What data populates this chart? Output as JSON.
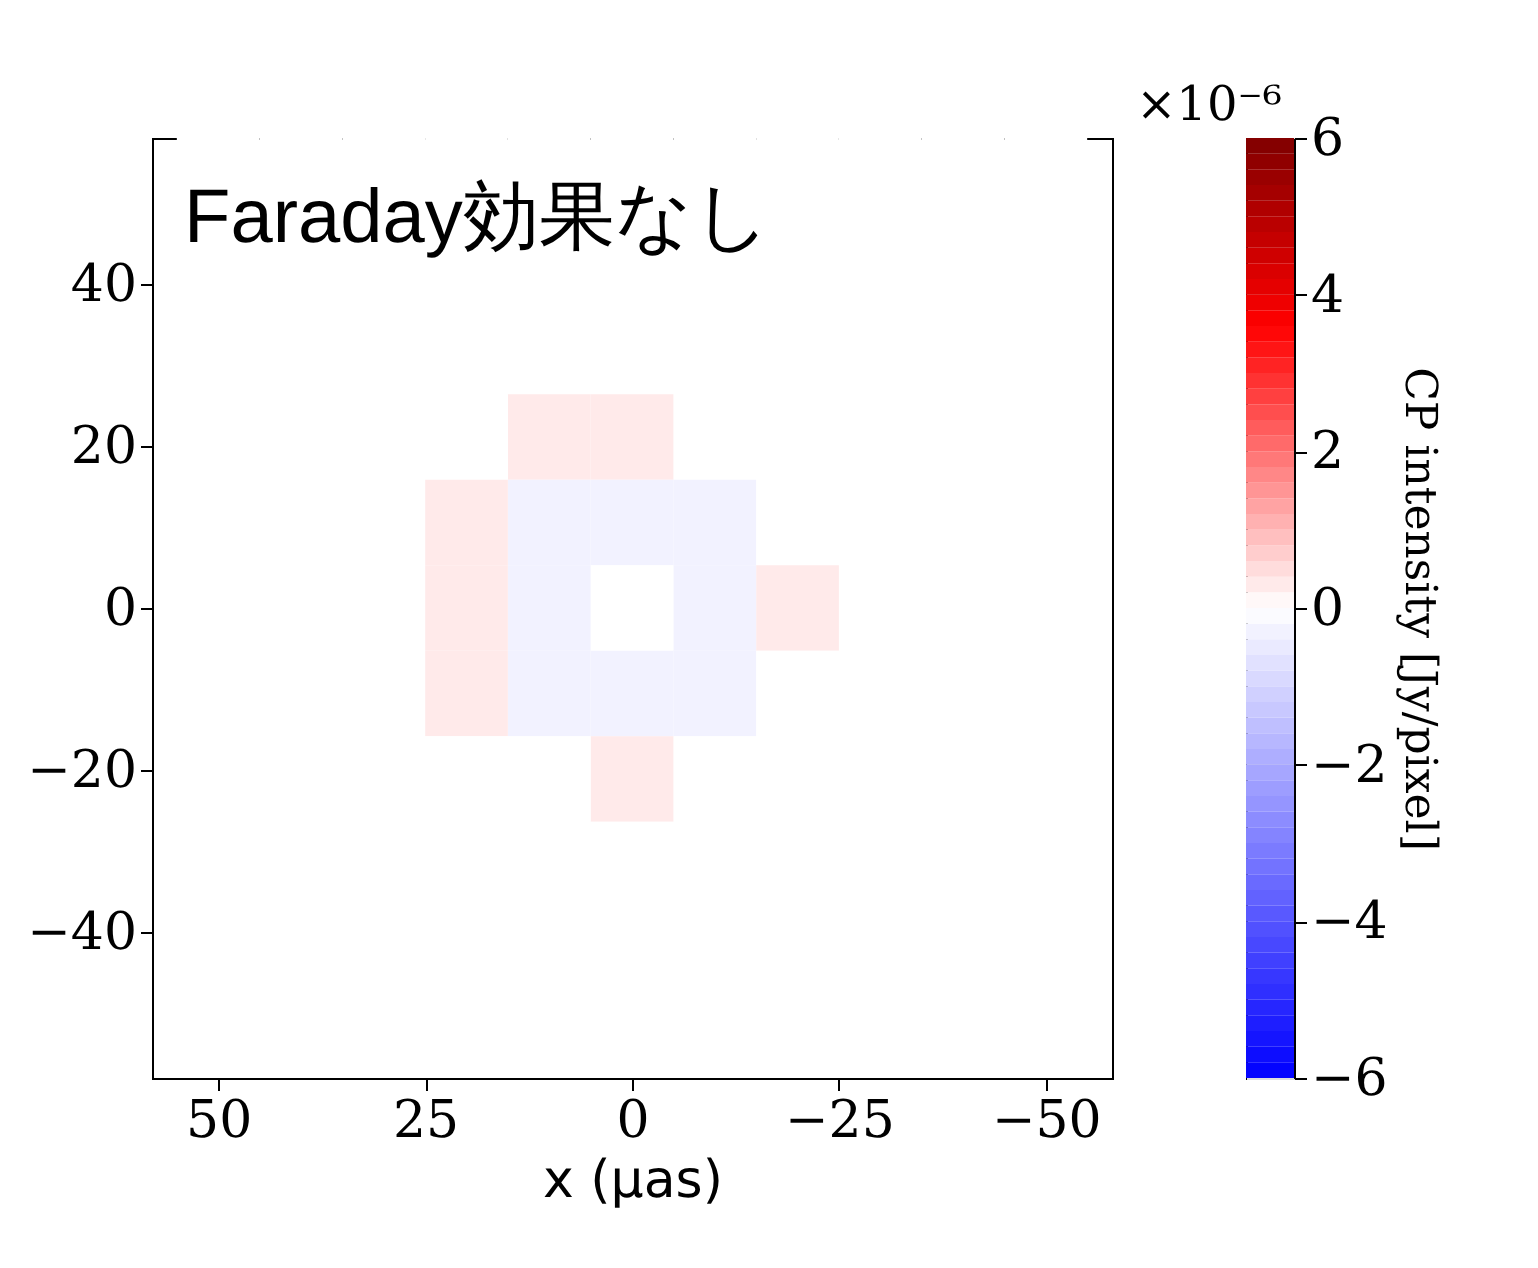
{
  "chart_data": {
    "type": "heatmap",
    "x": [
      -50,
      -40,
      -30,
      -20,
      -10,
      0,
      10,
      20,
      30,
      40,
      50
    ],
    "cells": [
      [
        0,
        0,
        0,
        0,
        0,
        0,
        0,
        0,
        0,
        0,
        0
      ],
      [
        0,
        0,
        0,
        0,
        0,
        0,
        0,
        0,
        0,
        0,
        0
      ],
      [
        0,
        0,
        0,
        0,
        0,
        0,
        0,
        0,
        0,
        0,
        0
      ],
      [
        0,
        0,
        0,
        0,
        0,
        0.3,
        0.3,
        0,
        0,
        0,
        0
      ],
      [
        0,
        0,
        0,
        0,
        -0.3,
        -0.3,
        -0.3,
        0.3,
        0,
        0,
        0
      ],
      [
        0,
        0,
        0,
        0.3,
        -0.3,
        0,
        -0.3,
        0.3,
        0,
        0,
        0
      ],
      [
        0,
        0,
        0,
        0,
        -0.3,
        -0.3,
        -0.3,
        0.3,
        0,
        0,
        0
      ],
      [
        0,
        0,
        0,
        0,
        0,
        0.3,
        0,
        0,
        0,
        0,
        0
      ],
      [
        0,
        0,
        0,
        0,
        0,
        0,
        0,
        0,
        0,
        0,
        0
      ],
      [
        0,
        0,
        0,
        0,
        0,
        0,
        0,
        0,
        0,
        0,
        0
      ],
      [
        0,
        0,
        0,
        0,
        0,
        0,
        0,
        0,
        0,
        0,
        0
      ]
    ],
    "xlim": [
      58,
      -58
    ],
    "ylim": [
      -58,
      58
    ],
    "xticks": [
      50,
      25,
      0,
      -25,
      -50
    ],
    "yticks": [
      -40,
      -20,
      0,
      20,
      40
    ],
    "xlabel": "x (μas)",
    "clabel": "CP intensity [Jy/pixel]",
    "clim": [
      -6,
      6
    ],
    "cticks": [
      -6,
      -4,
      -2,
      0,
      2,
      4,
      6
    ],
    "annotations": [
      "Faraday効果なし",
      "×10⁻⁶"
    ],
    "grid": false
  }
}
